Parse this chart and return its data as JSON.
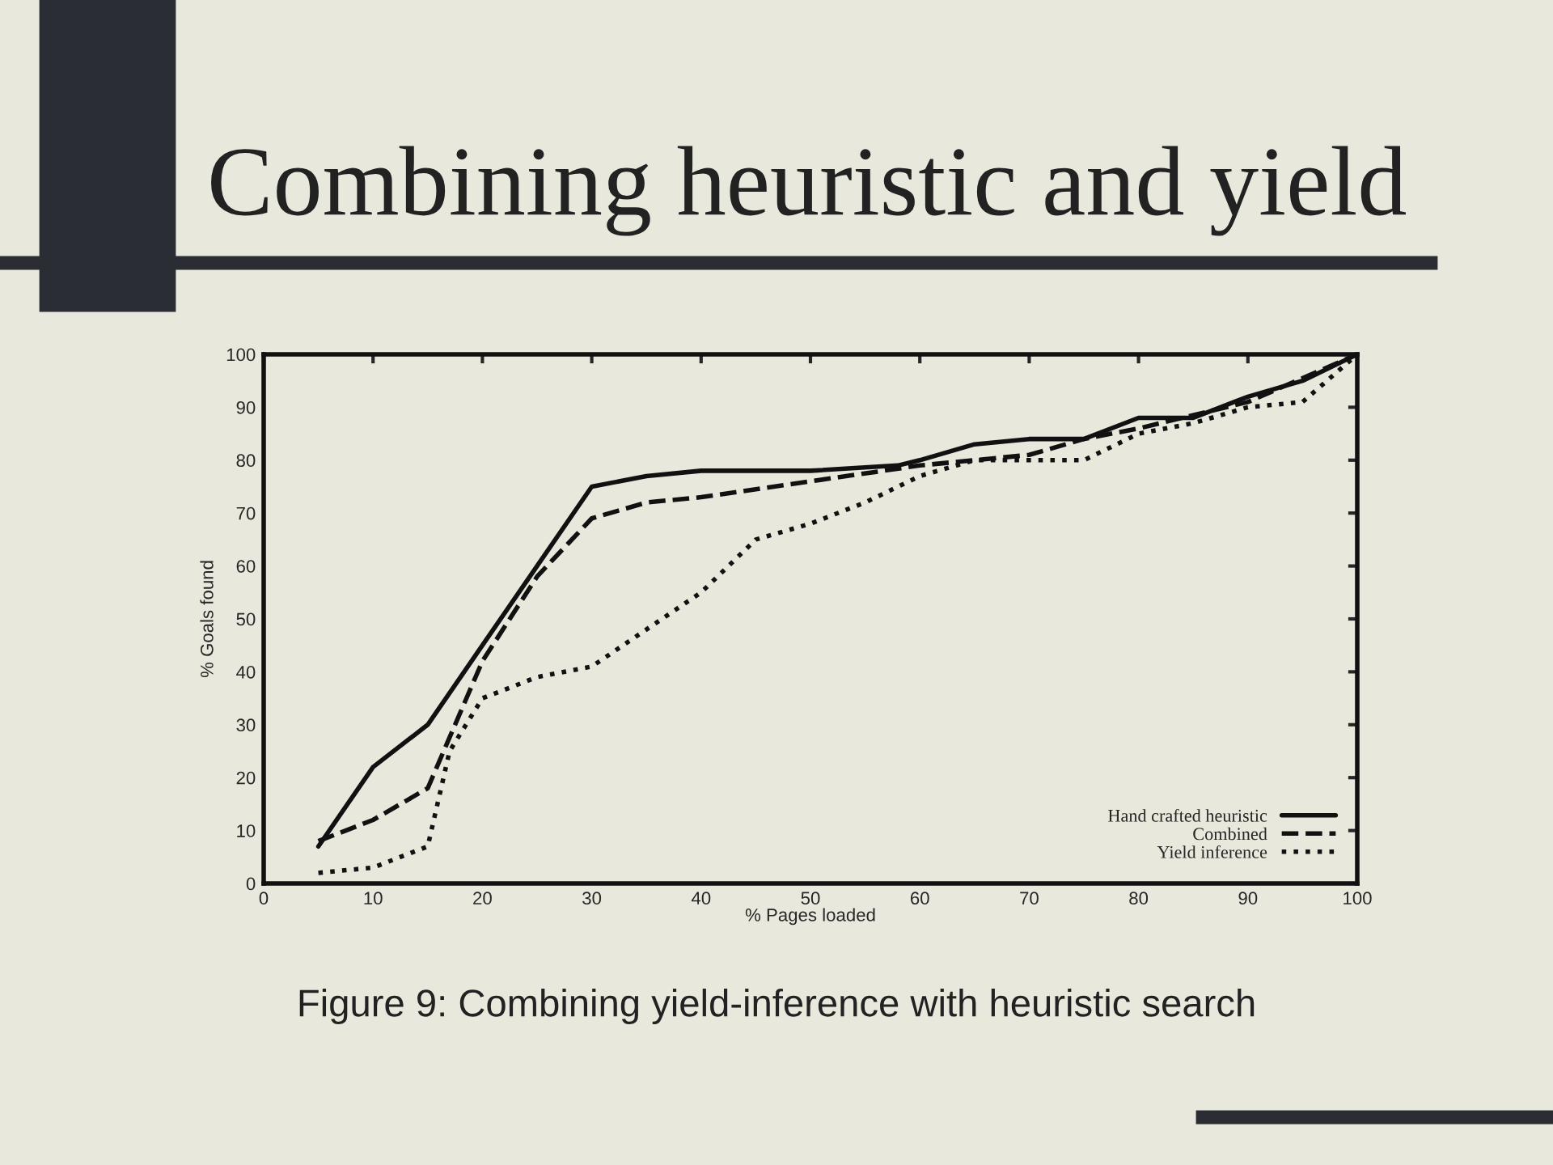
{
  "chart_data": {
    "type": "line",
    "title": "Combining heuristic and yield",
    "xlabel": "% Pages loaded",
    "ylabel": "% Goals found",
    "annotations": [
      "Figure 9: Combining yield-inference with heuristic search"
    ],
    "xlim": [
      0,
      100
    ],
    "ylim": [
      0,
      100
    ],
    "xticks": [
      0,
      10,
      20,
      30,
      40,
      50,
      60,
      70,
      80,
      90,
      100
    ],
    "yticks": [
      0,
      10,
      20,
      30,
      40,
      50,
      60,
      70,
      80,
      90,
      100
    ],
    "grid": false,
    "legend": "lower right",
    "series": [
      {
        "name": "Hand crafted heuristic",
        "color": "#111111",
        "line_style": "solid",
        "x": [
          5,
          10,
          15,
          20,
          25,
          30,
          35,
          40,
          50,
          58,
          60,
          65,
          70,
          75,
          80,
          85,
          90,
          95,
          100
        ],
        "values": [
          7,
          22,
          30,
          45,
          60,
          75,
          77,
          78,
          78,
          79,
          80,
          83,
          84,
          84,
          88,
          88,
          92,
          95,
          100
        ]
      },
      {
        "name": "Combined",
        "color": "#111111",
        "line_style": "dashed",
        "x": [
          5,
          10,
          15,
          20,
          25,
          30,
          35,
          40,
          50,
          60,
          65,
          70,
          75,
          80,
          90,
          100
        ],
        "values": [
          8,
          12,
          18,
          42,
          58,
          69,
          72,
          73,
          76,
          79,
          80,
          81,
          84,
          86,
          91,
          100
        ]
      },
      {
        "name": "Yield inference",
        "color": "#111111",
        "line_style": "dotted",
        "x": [
          5,
          10,
          15,
          17,
          20,
          25,
          30,
          35,
          40,
          45,
          50,
          55,
          60,
          65,
          75,
          80,
          85,
          90,
          95,
          100
        ],
        "values": [
          2,
          3,
          7,
          25,
          35,
          39,
          41,
          48,
          55,
          65,
          68,
          72,
          77,
          80,
          80,
          85,
          87,
          90,
          91,
          100
        ]
      }
    ]
  }
}
